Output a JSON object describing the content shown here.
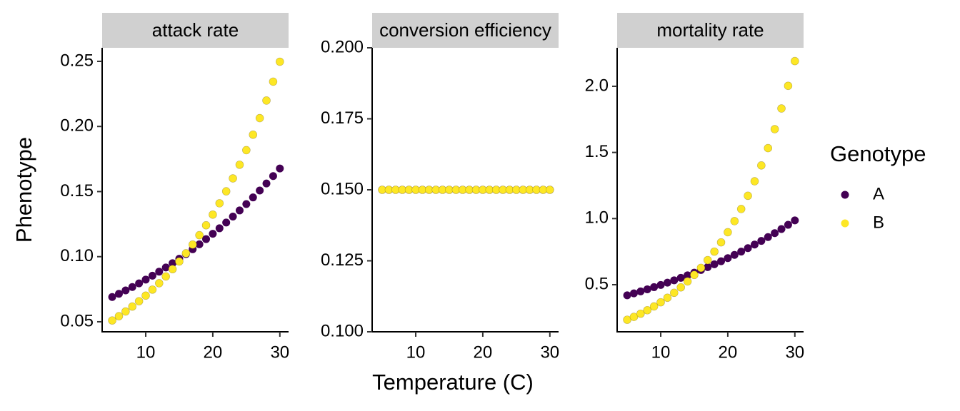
{
  "chart_data": {
    "type": "scatter",
    "xlabel": "Temperature (C)",
    "ylabel": "Phenotype",
    "legend_title": "Genotype",
    "legend": "right",
    "x": [
      5,
      6,
      7,
      8,
      9,
      10,
      11,
      12,
      13,
      14,
      15,
      16,
      17,
      18,
      19,
      20,
      21,
      22,
      23,
      24,
      25,
      26,
      27,
      28,
      29,
      30
    ],
    "xlim": [
      3.5,
      31.3
    ],
    "xticks": [
      10,
      20,
      30
    ],
    "series": [
      {
        "name": "A",
        "color": "#440154"
      },
      {
        "name": "B",
        "color": "#fde725"
      }
    ],
    "panels": [
      {
        "title": "attack rate",
        "ylim": [
          0.0423,
          0.2604
        ],
        "yticks": [
          0.05,
          {
            "value": 0.1,
            "label": "0.10"
          },
          0.15,
          {
            "value": 0.2,
            "label": "0.20"
          },
          0.25
        ],
        "values": [
          [
            0.069,
            0.0715,
            0.0741,
            0.0767,
            0.0795,
            0.0824,
            0.0854,
            0.0885,
            0.0917,
            0.095,
            0.0984,
            0.102,
            0.1057,
            0.1095,
            0.1135,
            0.1176,
            0.1218,
            0.1262,
            0.1308,
            0.1355,
            0.1404,
            0.1455,
            0.1508,
            0.1562,
            0.1619,
            0.1677
          ],
          [
            0.051,
            0.0543,
            0.0579,
            0.0617,
            0.0658,
            0.0701,
            0.0747,
            0.0796,
            0.0848,
            0.0904,
            0.0963,
            0.1026,
            0.1093,
            0.1165,
            0.1241,
            0.1323,
            0.141,
            0.1502,
            0.1601,
            0.1706,
            0.1818,
            0.1937,
            0.2064,
            0.2199,
            0.2344,
            0.2497
          ]
        ]
      },
      {
        "title": "conversion efficiency",
        "ylim": [
          0.1,
          0.2
        ],
        "yticks": [
          {
            "value": 0.1,
            "label": "0.100"
          },
          0.125,
          {
            "value": 0.15,
            "label": "0.150"
          },
          0.175,
          {
            "value": 0.2,
            "label": "0.200"
          }
        ],
        "values": [
          [
            0.15,
            0.15,
            0.15,
            0.15,
            0.15,
            0.15,
            0.15,
            0.15,
            0.15,
            0.15,
            0.15,
            0.15,
            0.15,
            0.15,
            0.15,
            0.15,
            0.15,
            0.15,
            0.15,
            0.15,
            0.15,
            0.15,
            0.15,
            0.15,
            0.15,
            0.15
          ],
          [
            0.15,
            0.15,
            0.15,
            0.15,
            0.15,
            0.15,
            0.15,
            0.15,
            0.15,
            0.15,
            0.15,
            0.15,
            0.15,
            0.15,
            0.15,
            0.15,
            0.15,
            0.15,
            0.15,
            0.15,
            0.15,
            0.15,
            0.15,
            0.15,
            0.15,
            0.15
          ]
        ]
      },
      {
        "title": "mortality rate",
        "ylim": [
          0.144,
          2.291
        ],
        "yticks": [
          0.5,
          {
            "value": 1,
            "label": "1.0"
          },
          1.5,
          {
            "value": 2,
            "label": "2.0"
          }
        ],
        "values": [
          [
            0.42,
            0.4346,
            0.4497,
            0.4653,
            0.4815,
            0.4982,
            0.5155,
            0.5334,
            0.5519,
            0.5711,
            0.5909,
            0.6114,
            0.6327,
            0.6546,
            0.6774,
            0.7009,
            0.7252,
            0.7504,
            0.7765,
            0.8034,
            0.8313,
            0.8602,
            0.89,
            0.9209,
            0.9529,
            0.986
          ],
          [
            0.235,
            0.2569,
            0.2809,
            0.3072,
            0.3359,
            0.3672,
            0.4015,
            0.439,
            0.48,
            0.5249,
            0.5739,
            0.6275,
            0.6861,
            0.7502,
            0.8203,
            0.8969,
            0.9807,
            1.0723,
            1.1725,
            1.282,
            1.4018,
            1.5327,
            1.6759,
            1.8324,
            2.0036,
            2.1907
          ]
        ]
      }
    ]
  }
}
